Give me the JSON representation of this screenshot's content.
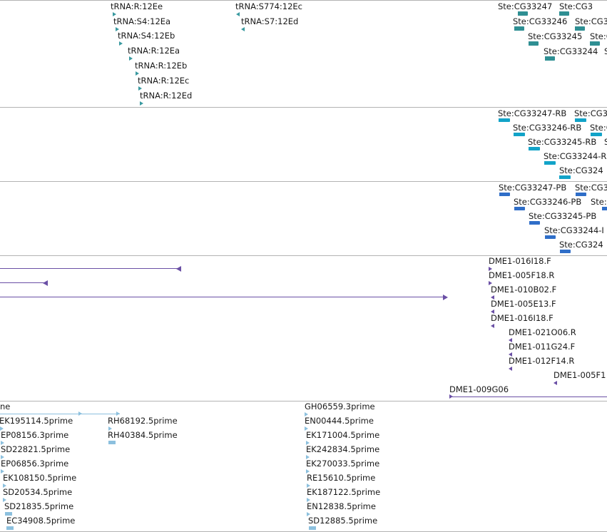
{
  "colors": {
    "trna": "#3a9aa0",
    "gene": "#2f8f93",
    "transcript": "#12a3c8",
    "protein": "#2f6ec8",
    "clone": "#6a4fa5",
    "est": "#8cc0de",
    "divider": "#b3b3b3"
  },
  "tracks": {
    "trna": {
      "features": [
        {
          "label": "tRNA:R:12Ee",
          "strand": "+"
        },
        {
          "label": "tRNA:S4:12Ea",
          "strand": "+"
        },
        {
          "label": "tRNA:S4:12Eb",
          "strand": "+"
        },
        {
          "label": "tRNA:R:12Ea",
          "strand": "+"
        },
        {
          "label": "tRNA:R:12Eb",
          "strand": "+"
        },
        {
          "label": "tRNA:R:12Ec",
          "strand": "+"
        },
        {
          "label": "tRNA:R:12Ed",
          "strand": "+"
        },
        {
          "label": "tRNA:S774:12Ec",
          "strand": "-"
        },
        {
          "label": "tRNA:S7:12Ed",
          "strand": "-"
        }
      ]
    },
    "genes": {
      "features": [
        {
          "label": "Ste:CG33247"
        },
        {
          "label": "Ste:CG3"
        },
        {
          "label": "Ste:CG33246"
        },
        {
          "label": "Ste:CG3"
        },
        {
          "label": "Ste:CG33245"
        },
        {
          "label": "Ste:C"
        },
        {
          "label": "Ste:CG33244"
        },
        {
          "label": "S"
        }
      ]
    },
    "transcripts": {
      "features": [
        {
          "label": "Ste:CG33247-RB"
        },
        {
          "label": "Ste:CG3"
        },
        {
          "label": "Ste:CG33246-RB"
        },
        {
          "label": "Ste:C"
        },
        {
          "label": "Ste:CG33245-RB"
        },
        {
          "label": "S"
        },
        {
          "label": "Ste:CG33244-R"
        },
        {
          "label": "Ste:CG324"
        }
      ]
    },
    "proteins": {
      "features": [
        {
          "label": "Ste:CG33247-PB"
        },
        {
          "label": "Ste:CG3"
        },
        {
          "label": "Ste:CG33246-PB"
        },
        {
          "label": "Ste:"
        },
        {
          "label": "Ste:CG33245-PB"
        },
        {
          "label": "Ste:CG33244-I"
        },
        {
          "label": "Ste:CG324"
        }
      ]
    },
    "clones": {
      "features": [
        {
          "label": "DME1-016I18.F",
          "strand": "+"
        },
        {
          "label": "DME1-005F18.R",
          "strand": "+"
        },
        {
          "label": "DME1-010B02.F",
          "strand": "-"
        },
        {
          "label": "DME1-005E13.F",
          "strand": "-"
        },
        {
          "label": "DME1-016I18.F",
          "strand": "-"
        },
        {
          "label": "DME1-021O06.R",
          "strand": "-"
        },
        {
          "label": "DME1-011G24.F",
          "strand": "-"
        },
        {
          "label": "DME1-012F14.R",
          "strand": "-"
        },
        {
          "label": "DME1-005F1",
          "strand": "-"
        },
        {
          "label": "DME1-009G06",
          "strand": "+"
        }
      ]
    },
    "est": {
      "features": [
        {
          "label": "ne"
        },
        {
          "label": "EK195114.5prime"
        },
        {
          "label": "EP08156.3prime"
        },
        {
          "label": "SD22821.5prime"
        },
        {
          "label": "EP06856.3prime"
        },
        {
          "label": "EK108150.5prime"
        },
        {
          "label": "SD20534.5prime"
        },
        {
          "label": "SD21835.5prime"
        },
        {
          "label": "EC34908.5prime"
        },
        {
          "label": "RH68192.5prime"
        },
        {
          "label": "RH40384.5prime"
        },
        {
          "label": "GH06559.3prime"
        },
        {
          "label": "EN00444.5prime"
        },
        {
          "label": "EK171004.5prime"
        },
        {
          "label": "EK242834.5prime"
        },
        {
          "label": "EK270033.5prime"
        },
        {
          "label": "RE15610.5prime"
        },
        {
          "label": "EK187122.5prime"
        },
        {
          "label": "EN12838.5prime"
        },
        {
          "label": "SD12885.5prime"
        }
      ]
    }
  }
}
